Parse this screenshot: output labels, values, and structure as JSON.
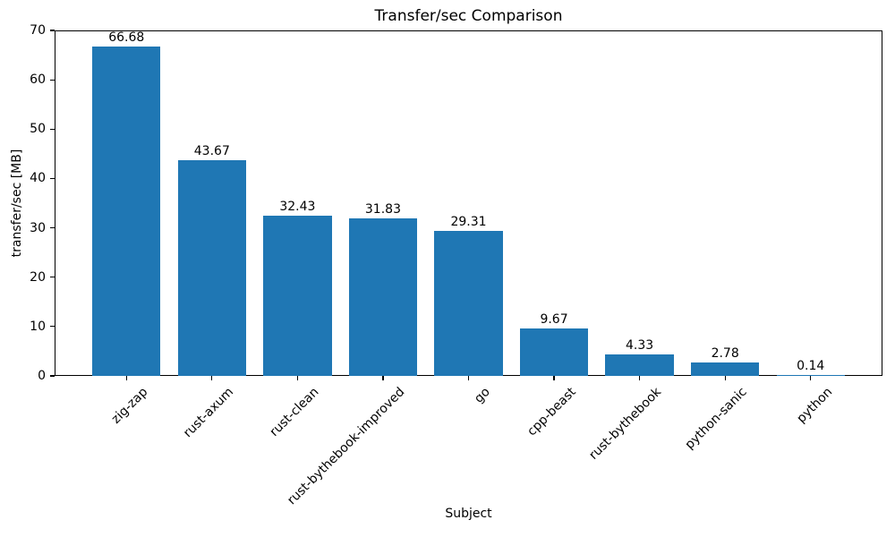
{
  "figure": {
    "background_color": "#ffffff",
    "text_color": "#000000"
  },
  "chart_data": {
    "type": "bar",
    "title": "Transfer/sec Comparison",
    "xlabel": "Subject",
    "ylabel": "transfer/sec [MB]",
    "categories": [
      "zig-zap",
      "rust-axum",
      "rust-clean",
      "rust-bythebook-improved",
      "go",
      "cpp-beast",
      "rust-bythebook",
      "python-sanic",
      "python"
    ],
    "values": [
      66.68,
      43.67,
      32.43,
      31.83,
      29.31,
      9.67,
      4.33,
      2.78,
      0.14
    ],
    "bar_value_labels": [
      "66.68",
      "43.67",
      "32.43",
      "31.83",
      "29.31",
      "9.67",
      "4.33",
      "2.78",
      "0.14"
    ],
    "ylim": [
      0,
      70
    ],
    "yticks": [
      "0",
      "10",
      "20",
      "30",
      "40",
      "50",
      "60",
      "70"
    ],
    "x_tick_rotation_deg": 45,
    "grid": false,
    "legend_position": "none",
    "bar_color": "#1f77b4",
    "axis_color": "#000000"
  }
}
